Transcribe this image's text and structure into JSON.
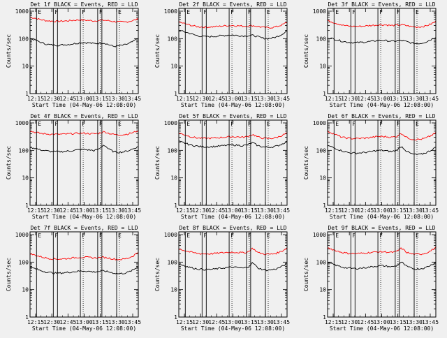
{
  "chart_data": [
    {
      "type": "line",
      "title": "Det 1f BLACK = Events, RED = LLD",
      "xlabel": "Start Time (04-May-06 12:08:00)",
      "ylabel": "Counts/sec",
      "x_ticks": [
        "12:15",
        "12:30",
        "12:45",
        "13:00",
        "13:15",
        "13:30",
        "13:45"
      ],
      "y_ticks": [
        "1",
        "10",
        "100",
        "1000"
      ],
      "ylim": [
        1,
        1000
      ],
      "markers": [
        "E",
        "F",
        "F",
        "F",
        "E"
      ],
      "series": [
        {
          "name": "LLD",
          "color": "#ff0000",
          "values": [
            600,
            560,
            500,
            460,
            440,
            430,
            430,
            440,
            450,
            470,
            480,
            470,
            460,
            440,
            460,
            470,
            450,
            420,
            410,
            400,
            420,
            460,
            520
          ]
        },
        {
          "name": "Events",
          "color": "#000000",
          "values": [
            100,
            90,
            75,
            65,
            60,
            58,
            58,
            60,
            62,
            66,
            70,
            72,
            70,
            66,
            68,
            70,
            60,
            52,
            55,
            58,
            65,
            80,
            105
          ]
        }
      ]
    },
    {
      "type": "line",
      "title": "Det 2f BLACK = Events, RED = LLD",
      "xlabel": "Start Time (04-May-06 12:08:00)",
      "ylabel": "Counts/sec",
      "x_ticks": [
        "12:15",
        "12:30",
        "12:45",
        "13:00",
        "13:15",
        "13:30",
        "13:45"
      ],
      "y_ticks": [
        "1",
        "10",
        "100",
        "1000"
      ],
      "ylim": [
        1,
        1000
      ],
      "markers": [
        "E",
        "F",
        "F",
        "F",
        "E"
      ],
      "series": [
        {
          "name": "LLD",
          "color": "#ff0000",
          "values": [
            400,
            360,
            320,
            290,
            270,
            265,
            265,
            270,
            280,
            290,
            300,
            300,
            295,
            285,
            290,
            300,
            280,
            260,
            250,
            255,
            275,
            320,
            390
          ]
        },
        {
          "name": "Events",
          "color": "#000000",
          "values": [
            200,
            180,
            160,
            140,
            125,
            120,
            118,
            120,
            125,
            130,
            135,
            135,
            130,
            125,
            128,
            132,
            118,
            105,
            100,
            105,
            118,
            145,
            195
          ]
        }
      ]
    },
    {
      "type": "line",
      "title": "Det 3f BLACK = Events, RED = LLD",
      "xlabel": "Start Time (04-May-06 12:08:00)",
      "ylabel": "Counts/sec",
      "x_ticks": [
        "12:15",
        "12:30",
        "12:45",
        "13:00",
        "13:15",
        "13:30",
        "13:45"
      ],
      "y_ticks": [
        "1",
        "10",
        "100",
        "1000"
      ],
      "ylim": [
        1,
        1000
      ],
      "markers": [
        "E",
        "F",
        "F",
        "F",
        "E"
      ],
      "series": [
        {
          "name": "LLD",
          "color": "#ff0000",
          "values": [
            450,
            400,
            350,
            310,
            290,
            280,
            280,
            285,
            295,
            305,
            315,
            320,
            315,
            300,
            310,
            320,
            300,
            275,
            265,
            270,
            290,
            340,
            420
          ]
        },
        {
          "name": "Events",
          "color": "#000000",
          "values": [
            110,
            100,
            90,
            80,
            75,
            72,
            72,
            74,
            76,
            80,
            85,
            86,
            84,
            80,
            82,
            86,
            78,
            70,
            66,
            68,
            76,
            92,
            115
          ]
        }
      ]
    },
    {
      "type": "line",
      "title": "Det 4f BLACK = Events, RED = LLD",
      "xlabel": "Start Time (04-May-06 12:08:00)",
      "ylabel": "Counts/sec",
      "x_ticks": [
        "12:15",
        "12:30",
        "12:45",
        "13:00",
        "13:15",
        "13:30",
        "13:45"
      ],
      "y_ticks": [
        "1",
        "10",
        "100",
        "1000"
      ],
      "ylim": [
        1,
        1000
      ],
      "markers": [
        "E",
        "F",
        "F",
        "F",
        "E"
      ],
      "series": [
        {
          "name": "LLD",
          "color": "#ff0000",
          "values": [
            500,
            460,
            420,
            400,
            390,
            385,
            385,
            390,
            400,
            410,
            420,
            420,
            410,
            400,
            420,
            480,
            420,
            380,
            370,
            375,
            400,
            450,
            520
          ]
        },
        {
          "name": "Events",
          "color": "#000000",
          "values": [
            130,
            120,
            105,
            98,
            92,
            90,
            90,
            92,
            95,
            100,
            106,
            108,
            104,
            98,
            110,
            160,
            110,
            90,
            85,
            88,
            98,
            115,
            135
          ]
        }
      ]
    },
    {
      "type": "line",
      "title": "Det 5f BLACK = Events, RED = LLD",
      "xlabel": "Start Time (04-May-06 12:08:00)",
      "ylabel": "Counts/sec",
      "x_ticks": [
        "12:15",
        "12:30",
        "12:45",
        "13:00",
        "13:15",
        "13:30",
        "13:45"
      ],
      "y_ticks": [
        "1",
        "10",
        "100",
        "1000"
      ],
      "ylim": [
        1,
        1000
      ],
      "markers": [
        "E",
        "F",
        "F",
        "F",
        "E"
      ],
      "series": [
        {
          "name": "LLD",
          "color": "#ff0000",
          "values": [
            420,
            380,
            330,
            300,
            280,
            275,
            275,
            280,
            290,
            300,
            310,
            315,
            310,
            300,
            320,
            380,
            310,
            280,
            270,
            275,
            300,
            350,
            430
          ]
        },
        {
          "name": "Events",
          "color": "#000000",
          "values": [
            210,
            190,
            165,
            150,
            140,
            135,
            135,
            138,
            142,
            148,
            155,
            158,
            154,
            148,
            160,
            190,
            150,
            135,
            130,
            133,
            145,
            170,
            215
          ]
        }
      ]
    },
    {
      "type": "line",
      "title": "Det 6f BLACK = Events, RED = LLD",
      "xlabel": "Start Time (04-May-06 12:08:00)",
      "ylabel": "Counts/sec",
      "x_ticks": [
        "12:15",
        "12:30",
        "12:45",
        "13:00",
        "13:15",
        "13:30",
        "13:45"
      ],
      "y_ticks": [
        "1",
        "10",
        "100",
        "1000"
      ],
      "ylim": [
        1,
        1000
      ],
      "markers": [
        "E",
        "F",
        "F",
        "F",
        "E"
      ],
      "series": [
        {
          "name": "LLD",
          "color": "#ff0000",
          "values": [
            500,
            420,
            350,
            300,
            280,
            270,
            270,
            275,
            285,
            300,
            315,
            320,
            315,
            300,
            320,
            420,
            300,
            260,
            250,
            255,
            280,
            340,
            430
          ]
        },
        {
          "name": "Events",
          "color": "#000000",
          "values": [
            150,
            130,
            110,
            95,
            85,
            80,
            80,
            82,
            86,
            92,
            98,
            100,
            96,
            90,
            100,
            140,
            95,
            75,
            70,
            72,
            82,
            100,
            130
          ]
        }
      ]
    },
    {
      "type": "line",
      "title": "Det 7f BLACK = Events, RED = LLD",
      "xlabel": "Start Time (04-May-06 12:08:00)",
      "ylabel": "Counts/sec",
      "x_ticks": [
        "12:15",
        "12:30",
        "12:45",
        "13:00",
        "13:15",
        "13:30",
        "13:45"
      ],
      "y_ticks": [
        "1",
        "10",
        "100",
        "1000"
      ],
      "ylim": [
        1,
        1000
      ],
      "markers": [
        "E",
        "F",
        "F",
        "F",
        "E"
      ],
      "series": [
        {
          "name": "LLD",
          "color": "#ff0000",
          "values": [
            200,
            180,
            160,
            145,
            135,
            130,
            130,
            132,
            138,
            145,
            150,
            150,
            148,
            142,
            146,
            150,
            140,
            130,
            125,
            128,
            140,
            170,
            230
          ]
        },
        {
          "name": "Events",
          "color": "#000000",
          "values": [
            65,
            58,
            50,
            45,
            42,
            40,
            40,
            41,
            43,
            45,
            47,
            48,
            46,
            44,
            46,
            48,
            44,
            40,
            38,
            39,
            43,
            52,
            68
          ]
        }
      ]
    },
    {
      "type": "line",
      "title": "Det 8f BLACK = Events, RED = LLD",
      "xlabel": "Start Time (04-May-06 12:08:00)",
      "ylabel": "Counts/sec",
      "x_ticks": [
        "12:15",
        "12:30",
        "12:45",
        "13:00",
        "13:15",
        "13:30",
        "13:45"
      ],
      "y_ticks": [
        "1",
        "10",
        "100",
        "1000"
      ],
      "ylim": [
        1,
        1000
      ],
      "markers": [
        "E",
        "F",
        "F",
        "F",
        "E"
      ],
      "series": [
        {
          "name": "LLD",
          "color": "#ff0000",
          "values": [
            300,
            270,
            240,
            220,
            205,
            200,
            200,
            205,
            212,
            220,
            228,
            230,
            226,
            218,
            230,
            320,
            225,
            200,
            192,
            196,
            215,
            255,
            330
          ]
        },
        {
          "name": "Events",
          "color": "#000000",
          "values": [
            85,
            76,
            66,
            60,
            56,
            54,
            54,
            55,
            58,
            61,
            64,
            65,
            63,
            60,
            65,
            95,
            62,
            54,
            51,
            53,
            58,
            70,
            88
          ]
        }
      ]
    },
    {
      "type": "line",
      "title": "Det 9f BLACK = Events, RED = LLD",
      "xlabel": "Start Time (04-May-06 12:08:00)",
      "ylabel": "Counts/sec",
      "x_ticks": [
        "12:15",
        "12:30",
        "12:45",
        "13:00",
        "13:15",
        "13:30",
        "13:45"
      ],
      "y_ticks": [
        "1",
        "10",
        "100",
        "1000"
      ],
      "ylim": [
        1,
        1000
      ],
      "markers": [
        "E",
        "F",
        "F",
        "F",
        "E"
      ],
      "series": [
        {
          "name": "LLD",
          "color": "#ff0000",
          "values": [
            330,
            290,
            250,
            225,
            210,
            205,
            205,
            210,
            218,
            226,
            235,
            238,
            234,
            225,
            240,
            320,
            230,
            200,
            190,
            195,
            215,
            260,
            340
          ]
        },
        {
          "name": "Events",
          "color": "#000000",
          "values": [
            95,
            85,
            74,
            66,
            61,
            59,
            59,
            61,
            64,
            68,
            72,
            74,
            71,
            67,
            74,
            100,
            70,
            60,
            56,
            58,
            64,
            78,
            98
          ]
        }
      ]
    }
  ]
}
